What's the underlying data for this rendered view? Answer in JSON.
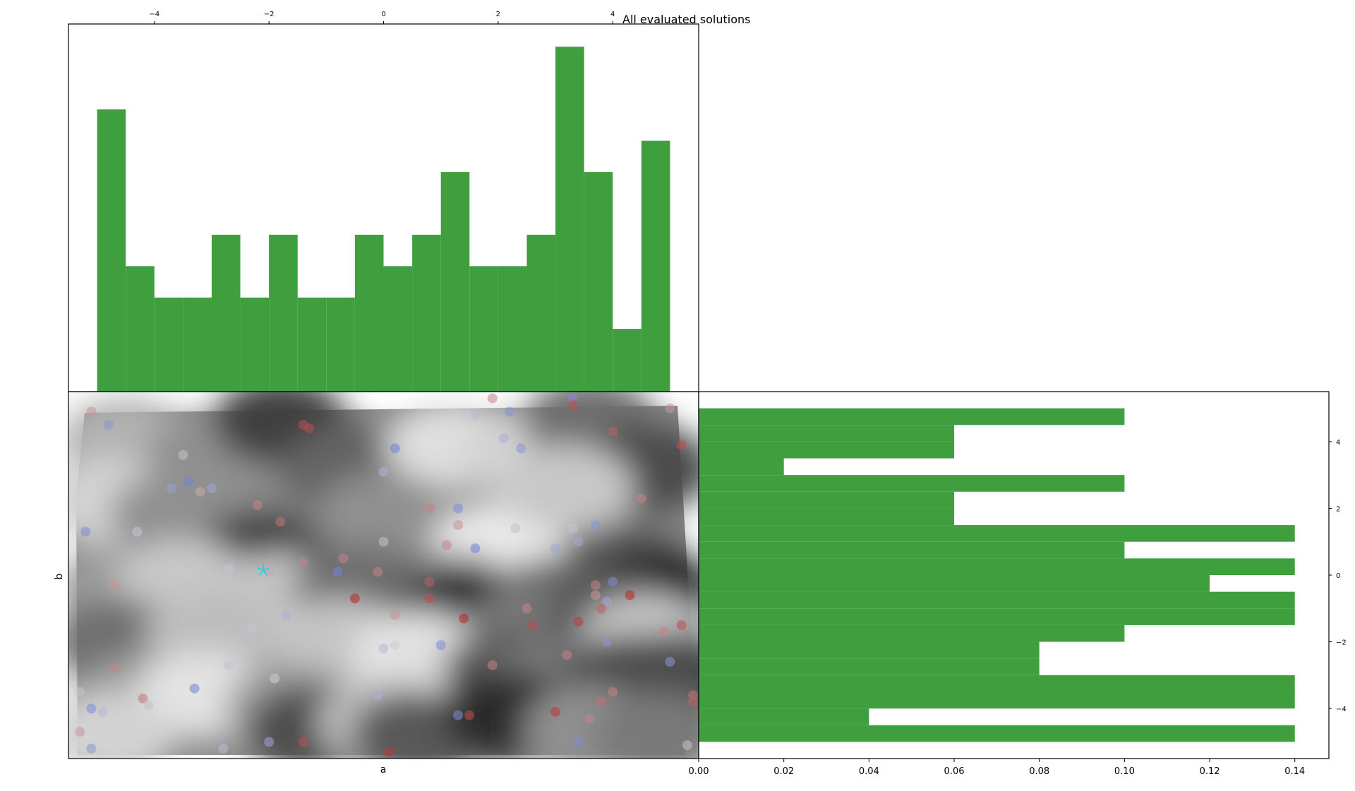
{
  "figure_title": "All evaluated solutions",
  "colors": {
    "bar_fill": "#3f9f3f",
    "frame": "#000000",
    "best_marker": "#1fd6e6",
    "low_point": "#5a6fd6",
    "high_point": "#b81414"
  },
  "chart_data": [
    {
      "id": "top-histogram",
      "type": "bar",
      "orientation": "vertical",
      "variable": "a",
      "xlim": [
        -5.5,
        5.5
      ],
      "xticks": [
        "−4",
        "−2",
        "0",
        "2",
        "4"
      ],
      "xtick_values": [
        -4,
        -2,
        0,
        2,
        4
      ],
      "xtick_position": "top",
      "bin_edges": [
        -5.0,
        -4.5,
        -4.0,
        -3.5,
        -3.0,
        -2.5,
        -2.0,
        -1.5,
        -1.0,
        -0.5,
        0.0,
        0.5,
        1.0,
        1.5,
        2.0,
        2.5,
        3.0,
        3.5,
        4.0,
        4.5,
        5.0
      ],
      "values": [
        0.09,
        0.04,
        0.03,
        0.03,
        0.05,
        0.03,
        0.05,
        0.03,
        0.03,
        0.05,
        0.04,
        0.05,
        0.07,
        0.04,
        0.04,
        0.05,
        0.11,
        0.07,
        0.02,
        0.08
      ],
      "ylim": [
        0,
        0.115
      ]
    },
    {
      "id": "right-histogram",
      "type": "bar",
      "orientation": "horizontal",
      "variable": "b",
      "ylim": [
        -5.5,
        5.5
      ],
      "yticks": [
        "4",
        "2",
        "0",
        "−2",
        "−4"
      ],
      "ytick_values": [
        4,
        2,
        0,
        -2,
        -4
      ],
      "ytick_position": "right",
      "xlim": [
        0,
        0.148
      ],
      "xticks": [
        "0.00",
        "0.02",
        "0.04",
        "0.06",
        "0.08",
        "0.10",
        "0.12",
        "0.14"
      ],
      "xtick_values": [
        0,
        0.02,
        0.04,
        0.06,
        0.08,
        0.1,
        0.12,
        0.14
      ],
      "bin_edges": [
        -5.0,
        -4.5,
        -4.0,
        -3.5,
        -3.0,
        -2.5,
        -2.0,
        -1.5,
        -1.0,
        -0.5,
        0.0,
        0.5,
        1.0,
        1.5,
        2.0,
        2.5,
        3.0,
        3.5,
        4.0,
        4.5,
        5.0
      ],
      "values": [
        0.14,
        0.04,
        0.14,
        0.14,
        0.08,
        0.08,
        0.1,
        0.14,
        0.14,
        0.12,
        0.14,
        0.1,
        0.14,
        0.06,
        0.06,
        0.1,
        0.02,
        0.06,
        0.06,
        0.1
      ]
    },
    {
      "id": "scatter-contour",
      "type": "scatter",
      "xlabel": "a",
      "ylabel": "b",
      "xlim": [
        -5.5,
        5.5
      ],
      "ylim": [
        -5.5,
        5.5
      ],
      "background": "filled contour of objective value (grayscale)",
      "best": {
        "x": -2.1,
        "y": 0.15,
        "marker": "star"
      },
      "points": [
        {
          "x": -5.1,
          "y": 4.9,
          "level": 0.65
        },
        {
          "x": -4.8,
          "y": 4.5,
          "level": 0.2
        },
        {
          "x": -3.5,
          "y": 3.6,
          "level": 0.45
        },
        {
          "x": -3.4,
          "y": 2.8,
          "level": 0.1
        },
        {
          "x": -3.7,
          "y": 2.6,
          "level": 0.25
        },
        {
          "x": -3.2,
          "y": 2.5,
          "level": 0.6
        },
        {
          "x": -3.0,
          "y": 2.6,
          "level": 0.3
        },
        {
          "x": -2.2,
          "y": 2.1,
          "level": 0.7
        },
        {
          "x": -1.8,
          "y": 1.6,
          "level": 0.75
        },
        {
          "x": -1.4,
          "y": 4.5,
          "level": 0.85
        },
        {
          "x": -5.2,
          "y": 1.3,
          "level": 0.15
        },
        {
          "x": -4.3,
          "y": 1.3,
          "level": 0.45
        },
        {
          "x": -4.7,
          "y": -0.3,
          "level": 0.65
        },
        {
          "x": -2.7,
          "y": 0.2,
          "level": 0.45
        },
        {
          "x": -2.0,
          "y": 0.1,
          "level": 0.6
        },
        {
          "x": -1.4,
          "y": 0.4,
          "level": 0.7
        },
        {
          "x": -0.7,
          "y": 0.5,
          "level": 0.7
        },
        {
          "x": -0.8,
          "y": 0.1,
          "level": 0.1
        },
        {
          "x": -0.1,
          "y": 0.1,
          "level": 0.7
        },
        {
          "x": -0.5,
          "y": -0.7,
          "level": 0.95
        },
        {
          "x": -1.7,
          "y": -1.2,
          "level": 0.35
        },
        {
          "x": -2.3,
          "y": -1.6,
          "level": 0.45
        },
        {
          "x": 0.2,
          "y": -1.2,
          "level": 0.65
        },
        {
          "x": 0.2,
          "y": -2.1,
          "level": 0.5
        },
        {
          "x": 0.0,
          "y": -2.2,
          "level": 0.4
        },
        {
          "x": -2.7,
          "y": -2.7,
          "level": 0.45
        },
        {
          "x": -1.9,
          "y": -3.1,
          "level": 0.5
        },
        {
          "x": -4.7,
          "y": -2.8,
          "level": 0.7
        },
        {
          "x": -5.3,
          "y": -3.5,
          "level": 0.45
        },
        {
          "x": -4.2,
          "y": -3.7,
          "level": 0.75
        },
        {
          "x": -4.1,
          "y": -3.9,
          "level": 0.45
        },
        {
          "x": -3.3,
          "y": -3.4,
          "level": 0.1
        },
        {
          "x": -5.1,
          "y": -4.0,
          "level": 0.15
        },
        {
          "x": -4.9,
          "y": -4.1,
          "level": 0.4
        },
        {
          "x": -5.3,
          "y": -4.7,
          "level": 0.65
        },
        {
          "x": -5.1,
          "y": -5.2,
          "level": 0.2
        },
        {
          "x": -2.8,
          "y": -5.2,
          "level": 0.4
        },
        {
          "x": -2.0,
          "y": -5.0,
          "level": 0.3
        },
        {
          "x": -1.4,
          "y": -5.0,
          "level": 0.85
        },
        {
          "x": 0.1,
          "y": -5.3,
          "level": 0.9
        },
        {
          "x": -0.1,
          "y": -3.6,
          "level": 0.35
        },
        {
          "x": 1.0,
          "y": -2.1,
          "level": 0.15
        },
        {
          "x": 1.3,
          "y": -4.2,
          "level": 0.15
        },
        {
          "x": 1.5,
          "y": -4.2,
          "level": 0.85
        },
        {
          "x": 1.4,
          "y": -1.3,
          "level": 0.95
        },
        {
          "x": 0.8,
          "y": -0.7,
          "level": 0.85
        },
        {
          "x": 0.8,
          "y": -0.2,
          "level": 0.8
        },
        {
          "x": 0.2,
          "y": 3.8,
          "level": 0.1
        },
        {
          "x": 0.0,
          "y": 3.1,
          "level": 0.35
        },
        {
          "x": 0.0,
          "y": 1.0,
          "level": 0.45
        },
        {
          "x": -1.3,
          "y": 4.4,
          "level": 0.85
        },
        {
          "x": 0.8,
          "y": 2.0,
          "level": 0.7
        },
        {
          "x": 1.3,
          "y": 2.0,
          "level": 0.15
        },
        {
          "x": 1.3,
          "y": 1.5,
          "level": 0.65
        },
        {
          "x": 1.1,
          "y": 0.9,
          "level": 0.7
        },
        {
          "x": 1.6,
          "y": 0.8,
          "level": 0.1
        },
        {
          "x": 1.9,
          "y": 5.3,
          "level": 0.7
        },
        {
          "x": 1.6,
          "y": 4.8,
          "level": 0.4
        },
        {
          "x": 2.2,
          "y": 4.9,
          "level": 0.2
        },
        {
          "x": 2.1,
          "y": 4.1,
          "level": 0.35
        },
        {
          "x": 2.4,
          "y": 3.8,
          "level": 0.2
        },
        {
          "x": 2.3,
          "y": 1.4,
          "level": 0.45
        },
        {
          "x": 3.0,
          "y": 0.8,
          "level": 0.3
        },
        {
          "x": 3.3,
          "y": 1.4,
          "level": 0.45
        },
        {
          "x": 3.4,
          "y": 1.0,
          "level": 0.3
        },
        {
          "x": 3.7,
          "y": 1.5,
          "level": 0.2
        },
        {
          "x": 3.3,
          "y": 5.3,
          "level": 0.15
        },
        {
          "x": 3.3,
          "y": 5.1,
          "level": 0.85
        },
        {
          "x": 4.0,
          "y": 4.3,
          "level": 0.8
        },
        {
          "x": 4.5,
          "y": 2.3,
          "level": 0.7
        },
        {
          "x": 5.0,
          "y": 5.0,
          "level": 0.65
        },
        {
          "x": 5.2,
          "y": 3.9,
          "level": 0.85
        },
        {
          "x": 4.0,
          "y": -0.2,
          "level": 0.15
        },
        {
          "x": 3.7,
          "y": -0.3,
          "level": 0.7
        },
        {
          "x": 3.7,
          "y": -0.6,
          "level": 0.65
        },
        {
          "x": 3.9,
          "y": -0.8,
          "level": 0.3
        },
        {
          "x": 3.8,
          "y": -1.0,
          "level": 0.8
        },
        {
          "x": 4.3,
          "y": -0.6,
          "level": 0.95
        },
        {
          "x": 3.4,
          "y": -1.4,
          "level": 0.9
        },
        {
          "x": 2.5,
          "y": -1.0,
          "level": 0.7
        },
        {
          "x": 2.6,
          "y": -1.5,
          "level": 0.85
        },
        {
          "x": 1.9,
          "y": -2.7,
          "level": 0.7
        },
        {
          "x": 3.2,
          "y": -2.4,
          "level": 0.7
        },
        {
          "x": 3.9,
          "y": -2.0,
          "level": 0.2
        },
        {
          "x": 4.9,
          "y": -1.7,
          "level": 0.7
        },
        {
          "x": 5.2,
          "y": -1.5,
          "level": 0.85
        },
        {
          "x": 5.0,
          "y": -2.6,
          "level": 0.2
        },
        {
          "x": 5.4,
          "y": -3.6,
          "level": 0.75
        },
        {
          "x": 5.4,
          "y": -3.8,
          "level": 0.8
        },
        {
          "x": 4.0,
          "y": -3.5,
          "level": 0.7
        },
        {
          "x": 3.8,
          "y": -3.8,
          "level": 0.75
        },
        {
          "x": 3.0,
          "y": -4.1,
          "level": 0.9
        },
        {
          "x": 3.6,
          "y": -4.3,
          "level": 0.7
        },
        {
          "x": 3.4,
          "y": -5.0,
          "level": 0.15
        },
        {
          "x": 5.3,
          "y": -5.1,
          "level": 0.45
        }
      ],
      "contour_levels": [
        {
          "x": -4.5,
          "y": 4.0,
          "v": 0.7
        },
        {
          "x": -3.0,
          "y": 3.5,
          "v": 0.55
        },
        {
          "x": -1.8,
          "y": 4.6,
          "v": 0.2
        },
        {
          "x": -0.6,
          "y": 3.2,
          "v": 0.35
        },
        {
          "x": 1.2,
          "y": 3.9,
          "v": 0.9
        },
        {
          "x": 2.5,
          "y": 3.6,
          "v": 0.85
        },
        {
          "x": 3.6,
          "y": 4.6,
          "v": 0.4
        },
        {
          "x": 4.6,
          "y": 3.2,
          "v": 0.25
        },
        {
          "x": -4.8,
          "y": 2.2,
          "v": 0.85
        },
        {
          "x": -3.6,
          "y": 1.8,
          "v": 0.55
        },
        {
          "x": -2.0,
          "y": 1.0,
          "v": 0.45
        },
        {
          "x": -2.1,
          "y": 0.4,
          "v": 0.1
        },
        {
          "x": 0.0,
          "y": 1.8,
          "v": 0.55
        },
        {
          "x": 2.0,
          "y": 0.9,
          "v": 0.95
        },
        {
          "x": 3.2,
          "y": 2.6,
          "v": 0.8
        },
        {
          "x": 4.2,
          "y": 0.2,
          "v": 0.3
        },
        {
          "x": 4.7,
          "y": -0.6,
          "v": 0.05
        },
        {
          "x": -4.5,
          "y": -0.4,
          "v": 0.6
        },
        {
          "x": -3.5,
          "y": -0.2,
          "v": 0.8
        },
        {
          "x": -1.8,
          "y": -0.6,
          "v": 0.78
        },
        {
          "x": -0.4,
          "y": -0.4,
          "v": 0.4
        },
        {
          "x": 1.2,
          "y": -0.7,
          "v": 0.35
        },
        {
          "x": 1.6,
          "y": -1.2,
          "v": 0.1
        },
        {
          "x": 3.0,
          "y": -0.8,
          "v": 0.35
        },
        {
          "x": 2.6,
          "y": -1.6,
          "v": 0.45
        },
        {
          "x": 4.0,
          "y": -1.2,
          "v": 0.3
        },
        {
          "x": 4.6,
          "y": -1.9,
          "v": 0.8
        },
        {
          "x": 5.2,
          "y": -3.0,
          "v": 0.25
        },
        {
          "x": -4.6,
          "y": -2.0,
          "v": 0.4
        },
        {
          "x": -3.0,
          "y": -1.8,
          "v": 0.75
        },
        {
          "x": -0.8,
          "y": -2.0,
          "v": 0.78
        },
        {
          "x": 0.6,
          "y": -2.4,
          "v": 0.92
        },
        {
          "x": 1.4,
          "y": -3.0,
          "v": 0.9
        },
        {
          "x": 2.2,
          "y": -2.9,
          "v": 0.3
        },
        {
          "x": 3.0,
          "y": -3.2,
          "v": 0.45
        },
        {
          "x": 4.3,
          "y": -3.1,
          "v": 0.25
        },
        {
          "x": -4.2,
          "y": -3.6,
          "v": 0.6
        },
        {
          "x": -3.2,
          "y": -3.6,
          "v": 0.92
        },
        {
          "x": -1.6,
          "y": -4.0,
          "v": 0.6
        },
        {
          "x": -1.2,
          "y": -4.6,
          "v": 0.25
        },
        {
          "x": 0.0,
          "y": -4.4,
          "v": 0.75
        },
        {
          "x": 0.6,
          "y": -4.8,
          "v": 0.3
        },
        {
          "x": 2.2,
          "y": -4.2,
          "v": 0.1
        },
        {
          "x": 3.6,
          "y": -4.6,
          "v": 0.55
        },
        {
          "x": 4.8,
          "y": -4.8,
          "v": 0.45
        },
        {
          "x": -4.8,
          "y": -4.8,
          "v": 0.85
        }
      ]
    }
  ]
}
